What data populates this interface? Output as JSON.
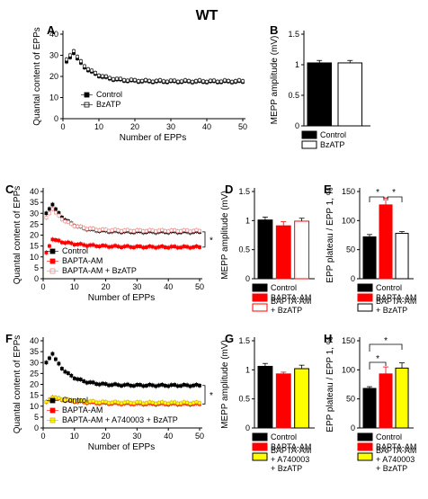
{
  "figure": {
    "title": "WT",
    "star": "*",
    "colors": {
      "control": "#000000",
      "bapta": "#ff0000",
      "bapta_bz": "#ffb8b8",
      "a74": "#ffff00"
    }
  },
  "chart_data": [
    {
      "id": "A",
      "panel_label": "A",
      "type": "line",
      "xlabel": "Number of EPPs",
      "ylabel": "Quantal content of EPPs",
      "xlim": [
        0,
        50
      ],
      "ylim": [
        0,
        40
      ],
      "xticks": [
        0,
        10,
        20,
        30,
        40,
        50
      ],
      "yticks": [
        0,
        10,
        20,
        30,
        40
      ],
      "legend_position": "center-left",
      "series": [
        {
          "name": "Control",
          "style": "black-square",
          "peak": 31,
          "start": 27,
          "plateau": 17.5,
          "tau": 4.5
        },
        {
          "name": "BzATP",
          "style": "white-square",
          "peak": 32,
          "start": 28,
          "plateau": 17.8,
          "tau": 4.5
        }
      ]
    },
    {
      "id": "B",
      "panel_label": "B",
      "type": "bar",
      "ylabel": "MEPP amplitude (mV)",
      "ylim": [
        0,
        1.5
      ],
      "yticks": [
        0.0,
        0.5,
        1.0,
        1.5
      ],
      "categories": [
        "Control",
        "BzATP"
      ],
      "values": [
        1.03,
        1.03
      ],
      "errors": [
        0.04,
        0.04
      ],
      "legend_position": "bottom"
    },
    {
      "id": "C",
      "panel_label": "C",
      "type": "line",
      "xlabel": "Number of EPPs",
      "ylabel": "Quantal content of EPPs",
      "xlim": [
        0,
        50
      ],
      "ylim": [
        0,
        40
      ],
      "xticks": [
        0,
        10,
        20,
        30,
        40,
        50
      ],
      "yticks": [
        0,
        5,
        10,
        15,
        20,
        25,
        30,
        35,
        40
      ],
      "legend_position": "bottom-left",
      "annotation": "*",
      "series": [
        {
          "name": "Control",
          "style": "black-square",
          "peak": 34,
          "start": 30,
          "plateau": 21.5,
          "tau": 5
        },
        {
          "name": "BAPTA-AM",
          "style": "red-square",
          "peak": 18,
          "start": 12,
          "plateau": 14.5,
          "tau": 8
        },
        {
          "name": "BAPTA-AM + BzATP",
          "style": "pink-square",
          "peak": 32,
          "start": 28,
          "plateau": 22,
          "tau": 5
        }
      ]
    },
    {
      "id": "D",
      "panel_label": "D",
      "type": "bar",
      "ylabel": "MEPP amplitude (mV)",
      "ylim": [
        0,
        1.5
      ],
      "yticks": [
        0.0,
        0.5,
        1.0,
        1.5
      ],
      "categories": [
        "Control",
        "BAPTA-AM",
        "BAPTA-AM + BzATP"
      ],
      "values": [
        1.01,
        0.91,
        0.99
      ],
      "errors": [
        0.05,
        0.07,
        0.05
      ],
      "legend_position": "bottom"
    },
    {
      "id": "E",
      "panel_label": "E",
      "type": "bar",
      "ylabel": "EPP plateau / EPP 1, %",
      "ylim": [
        0,
        150
      ],
      "yticks": [
        0,
        50,
        100,
        150
      ],
      "categories": [
        "Control",
        "BAPTA-AM",
        "BAPTA-AM + BzATP"
      ],
      "values": [
        72,
        127,
        78
      ],
      "errors": [
        4,
        12,
        3
      ],
      "annotation": "*",
      "legend_position": "bottom"
    },
    {
      "id": "F",
      "panel_label": "F",
      "type": "line",
      "xlabel": "Number of EPPs",
      "ylabel": "Quantal content of EPPs",
      "xlim": [
        0,
        50
      ],
      "ylim": [
        0,
        40
      ],
      "xticks": [
        0,
        10,
        20,
        30,
        40,
        50
      ],
      "yticks": [
        0,
        5,
        10,
        15,
        20,
        25,
        30,
        35,
        40
      ],
      "legend_position": "bottom-left",
      "annotation": "*",
      "series": [
        {
          "name": "Control",
          "style": "black-square",
          "peak": 34,
          "start": 30,
          "plateau": 19.5,
          "tau": 5
        },
        {
          "name": "BAPTA-AM",
          "style": "red-square",
          "peak": 14,
          "start": 12,
          "plateau": 11,
          "tau": 8
        },
        {
          "name": "BAPTA-AM + A740003 + BzATP",
          "style": "yellow-square",
          "peak": 14,
          "start": 12,
          "plateau": 11.5,
          "tau": 8
        }
      ]
    },
    {
      "id": "G",
      "panel_label": "G",
      "type": "bar",
      "ylabel": "MEPP amplitude (mV)",
      "ylim": [
        0,
        1.5
      ],
      "yticks": [
        0.0,
        0.5,
        1.0,
        1.5
      ],
      "categories": [
        "Control",
        "BAPTA-AM",
        "BAPTA-AM + A740003 + BzATP"
      ],
      "values": [
        1.06,
        0.93,
        1.02
      ],
      "errors": [
        0.05,
        0.03,
        0.06
      ],
      "legend_position": "bottom"
    },
    {
      "id": "H",
      "panel_label": "H",
      "type": "bar",
      "ylabel": "EPP plateau / EPP 1, %",
      "ylim": [
        0,
        150
      ],
      "yticks": [
        0,
        50,
        100,
        150
      ],
      "categories": [
        "Control",
        "BAPTA-AM",
        "BAPTA-AM + A740003 + BzATP"
      ],
      "values": [
        68,
        93,
        103
      ],
      "errors": [
        3,
        12,
        9
      ],
      "annotation": "*",
      "legend_position": "bottom"
    }
  ]
}
